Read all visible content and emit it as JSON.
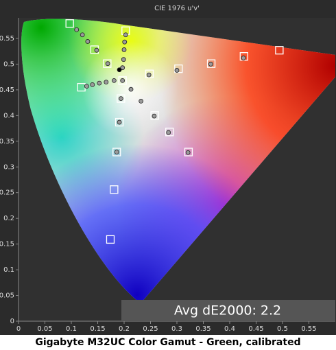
{
  "chart_data": {
    "type": "scatter",
    "title": "CIE 1976 u'v'",
    "caption": "Gigabyte M32UC Color Gamut - Green, calibrated",
    "annotation": "Avg dE2000: 2.2",
    "xlim": [
      0,
      0.6
    ],
    "ylim": [
      0,
      0.59
    ],
    "xticks": [
      0,
      0.05,
      0.1,
      0.15,
      0.2,
      0.25,
      0.3,
      0.35,
      0.4,
      0.45,
      0.5,
      0.55
    ],
    "yticks": [
      0,
      0.05,
      0.1,
      0.15,
      0.2,
      0.25,
      0.3,
      0.35,
      0.4,
      0.45,
      0.5,
      0.55
    ],
    "series": [
      {
        "marker": "square",
        "color": "#ffffff",
        "x": [
          0.097,
          0.144,
          0.168,
          0.203,
          0.197,
          0.248,
          0.303,
          0.365,
          0.427,
          0.494,
          0.119,
          0.194,
          0.191,
          0.186,
          0.181,
          0.174,
          0.258,
          0.286,
          0.322
        ],
        "values": [
          0.579,
          0.528,
          0.501,
          0.565,
          0.468,
          0.481,
          0.491,
          0.501,
          0.515,
          0.527,
          0.455,
          0.433,
          0.387,
          0.329,
          0.256,
          0.159,
          0.4,
          0.368,
          0.329
        ]
      },
      {
        "marker": "circle",
        "color": "#9a9a9a",
        "x": [
          0.11,
          0.121,
          0.131,
          0.148,
          0.169,
          0.203,
          0.201,
          0.2,
          0.199,
          0.197,
          0.197,
          0.247,
          0.3,
          0.364,
          0.426,
          0.129,
          0.14,
          0.153,
          0.166,
          0.181,
          0.213,
          0.232,
          0.194,
          0.257,
          0.191,
          0.284,
          0.186,
          0.321
        ],
        "values": [
          0.567,
          0.557,
          0.544,
          0.527,
          0.501,
          0.557,
          0.543,
          0.528,
          0.509,
          0.493,
          0.468,
          0.479,
          0.488,
          0.5,
          0.512,
          0.457,
          0.46,
          0.463,
          0.465,
          0.468,
          0.451,
          0.428,
          0.433,
          0.399,
          0.387,
          0.367,
          0.329,
          0.328
        ]
      },
      {
        "marker": "circle",
        "color": "#000000",
        "x": [
          0.191
        ],
        "values": [
          0.489
        ]
      }
    ]
  }
}
